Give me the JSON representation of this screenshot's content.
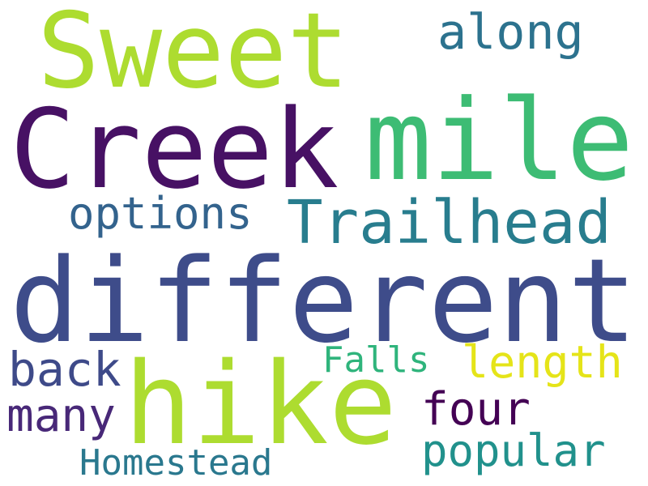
{
  "word_cloud": {
    "words": [
      {
        "text": "Sweet",
        "color": "#addc30"
      },
      {
        "text": "along",
        "color": "#2c728e"
      },
      {
        "text": "Creek",
        "color": "#471164"
      },
      {
        "text": "mile",
        "color": "#3dbc74"
      },
      {
        "text": "options",
        "color": "#33638d"
      },
      {
        "text": "Trailhead",
        "color": "#287d8e"
      },
      {
        "text": "different",
        "color": "#3e4c8a"
      },
      {
        "text": "back",
        "color": "#3e4a89"
      },
      {
        "text": "Falls",
        "color": "#2fb47c"
      },
      {
        "text": "length",
        "color": "#e5e419"
      },
      {
        "text": "hike",
        "color": "#addc30"
      },
      {
        "text": "many",
        "color": "#482878"
      },
      {
        "text": "four",
        "color": "#440154"
      },
      {
        "text": "popular",
        "color": "#21918c"
      },
      {
        "text": "Homestead",
        "color": "#2a788e"
      }
    ]
  }
}
